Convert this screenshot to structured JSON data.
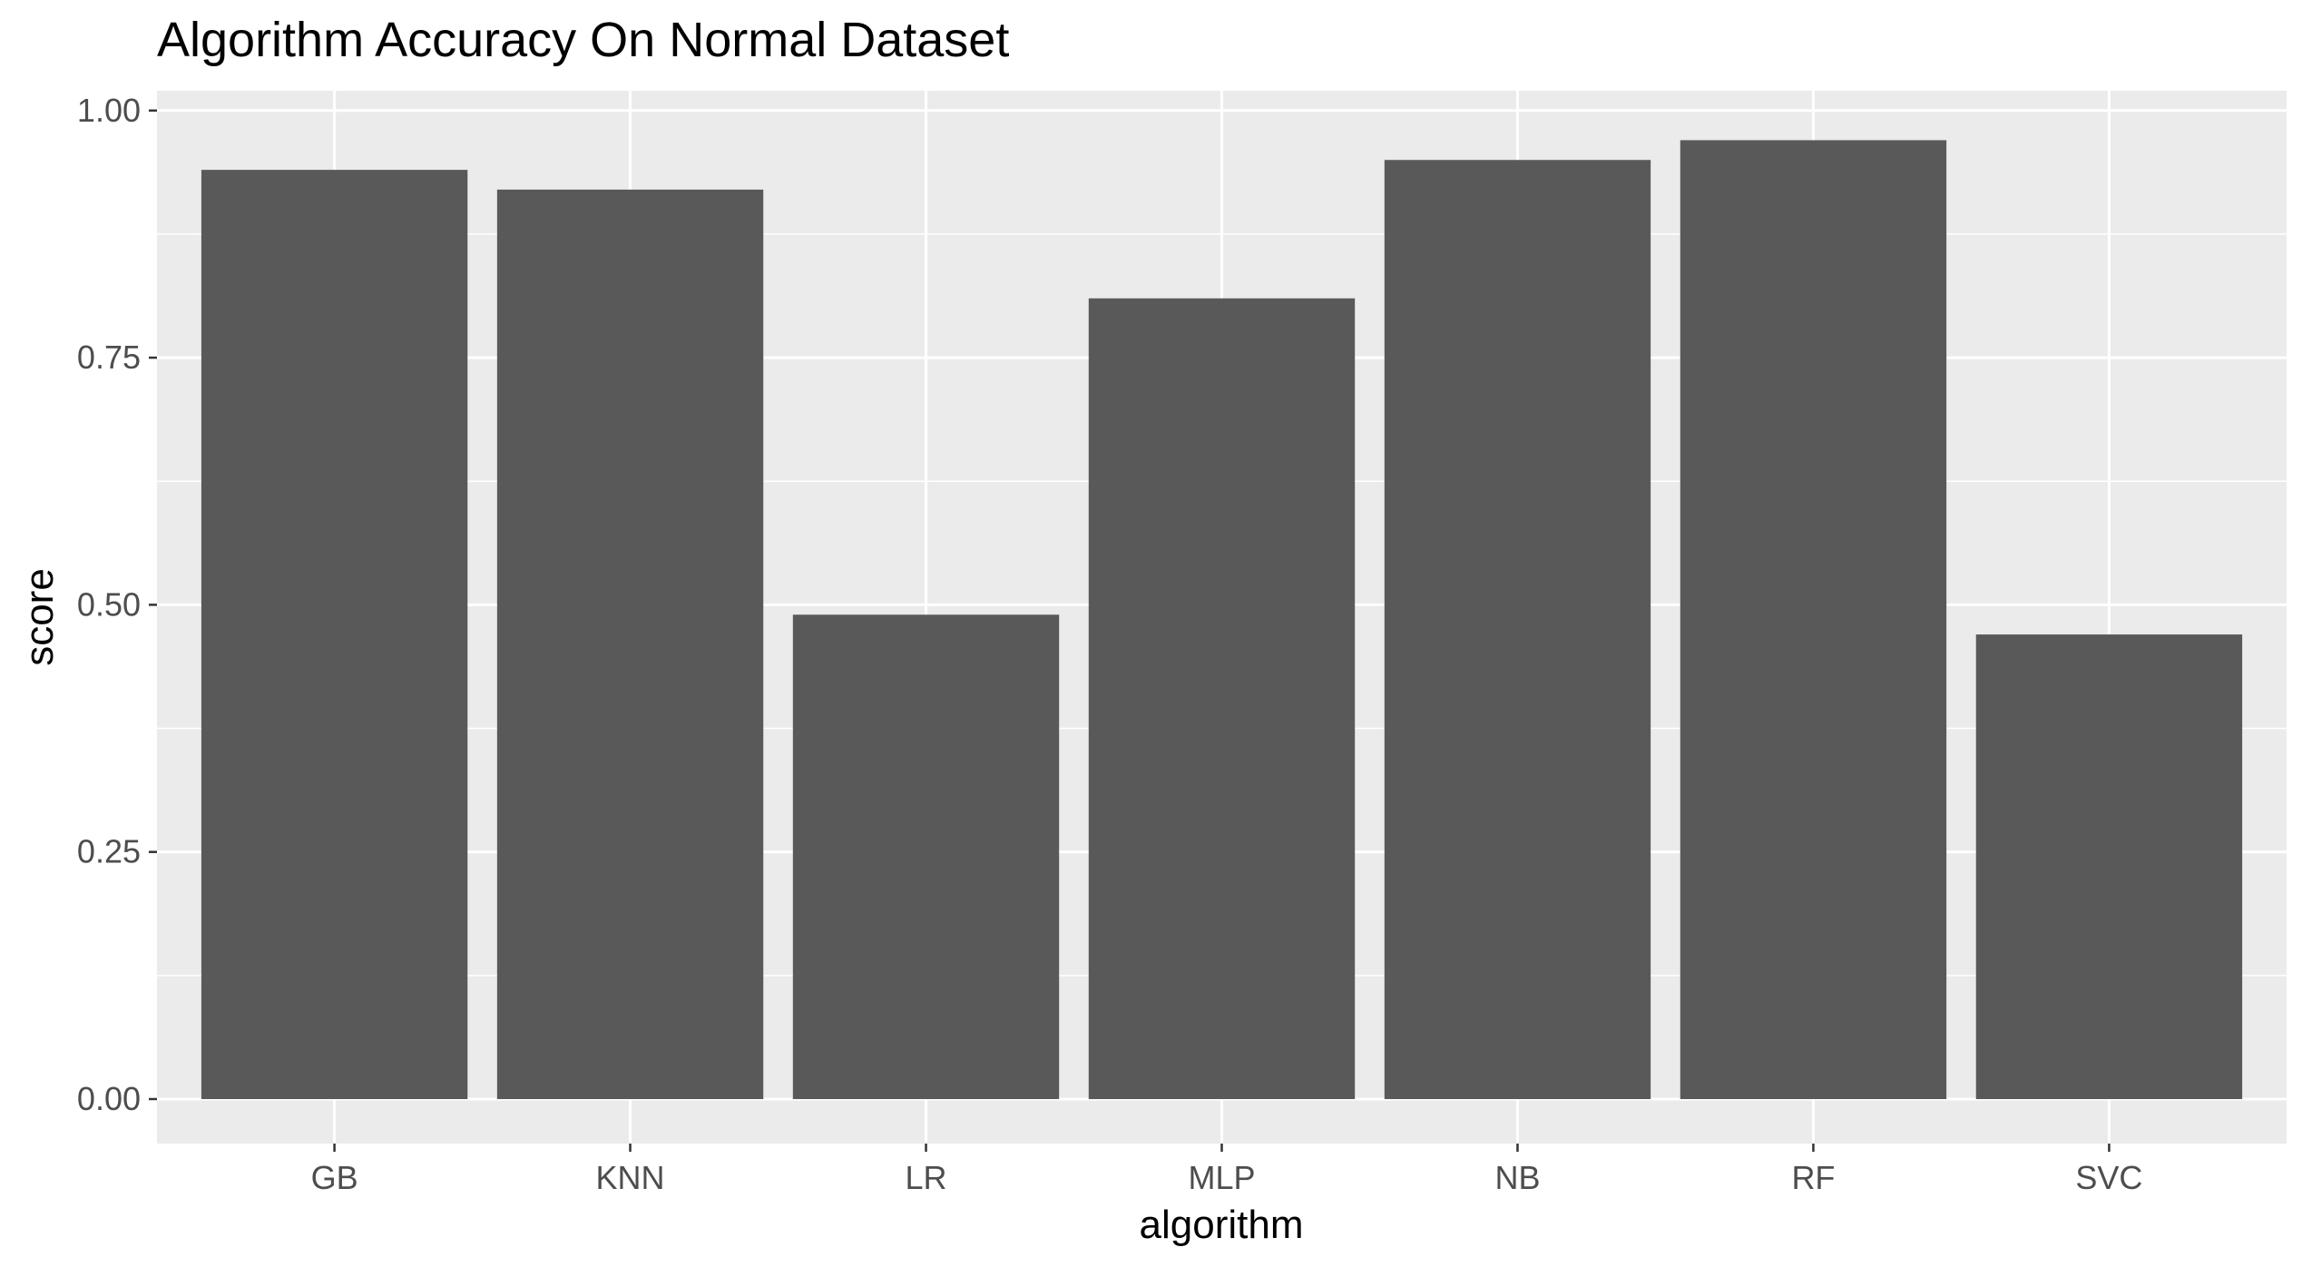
{
  "chart_data": {
    "type": "bar",
    "title": "Algorithm Accuracy On Normal Dataset",
    "xlabel": "algorithm",
    "ylabel": "score",
    "categories": [
      "GB",
      "KNN",
      "LR",
      "MLP",
      "NB",
      "RF",
      "SVC"
    ],
    "values": [
      0.94,
      0.92,
      0.49,
      0.81,
      0.95,
      0.97,
      0.47
    ],
    "ylim": [
      -0.045,
      1.02
    ],
    "yticks": [
      0.0,
      0.25,
      0.5,
      0.75,
      1.0
    ],
    "ytick_labels": [
      "0.00",
      "0.25",
      "0.50",
      "0.75",
      "1.00"
    ],
    "grid": true,
    "legend": "none",
    "colors": {
      "bar": "#595959",
      "panel": "#ebebeb",
      "grid_major": "#ffffff",
      "tick": "#333333",
      "tick_text": "#4d4d4d"
    }
  }
}
